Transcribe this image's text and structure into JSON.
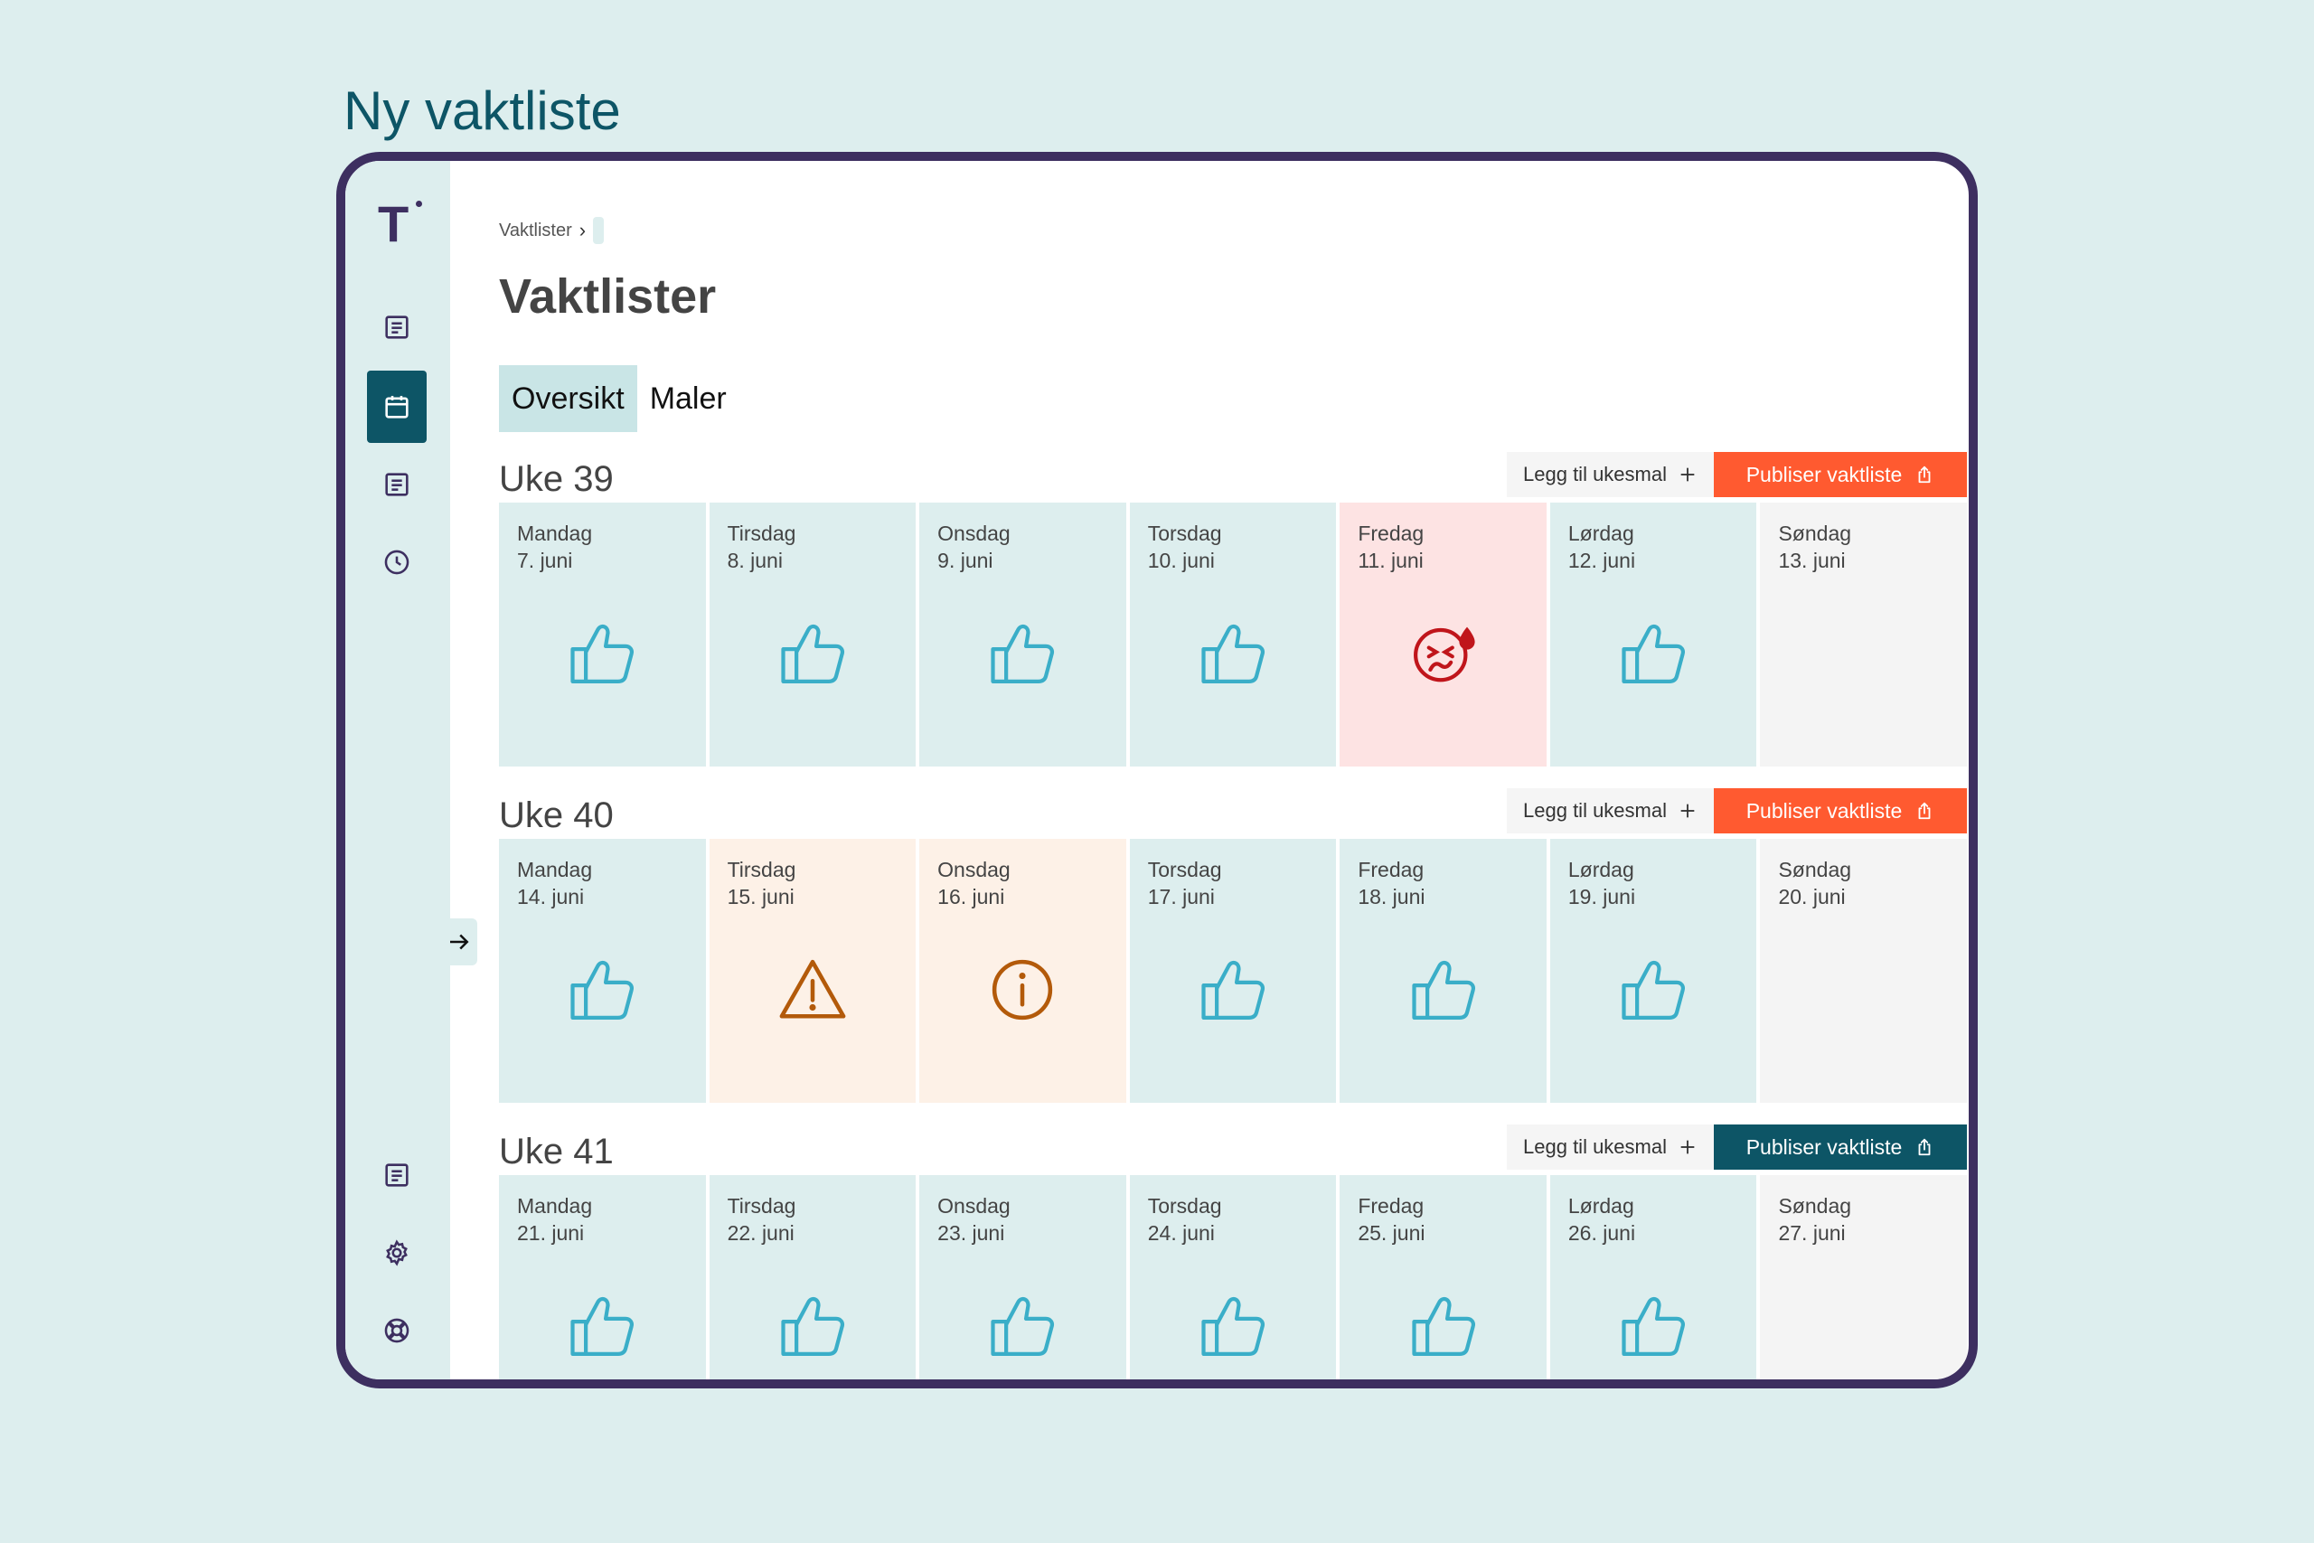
{
  "frame_title": "Ny vaktliste",
  "app": {
    "logo": "T",
    "breadcrumb": "Vaktlister",
    "page_title": "Vaktlister",
    "tabs": [
      {
        "label": "Oversikt",
        "active": true
      },
      {
        "label": "Maler",
        "active": false
      }
    ],
    "sidebar": {
      "items": [
        {
          "icon": "document-icon",
          "active": false
        },
        {
          "icon": "calendar-icon",
          "active": true
        },
        {
          "icon": "document-icon",
          "active": false
        },
        {
          "icon": "clock-icon",
          "active": false
        }
      ],
      "bottom_items": [
        {
          "icon": "document-icon"
        },
        {
          "icon": "gear-icon"
        },
        {
          "icon": "lifebuoy-icon"
        }
      ]
    }
  },
  "colors": {
    "accent_dark": "#0d5566",
    "publish": "#ff5a30",
    "ok_icon": "#3aaec8",
    "alert_icon": "#c0151b",
    "warn_icon": "#b35a0a"
  },
  "weeks": [
    {
      "title": "Uke 39",
      "add_label": "Legg til ukesmal",
      "publish_label": "Publiser vaktliste",
      "publish_variant": "orange",
      "days": [
        {
          "name": "Mandag",
          "date": "7. juni",
          "status": "ok"
        },
        {
          "name": "Tirsdag",
          "date": "8. juni",
          "status": "ok"
        },
        {
          "name": "Onsdag",
          "date": "9. juni",
          "status": "ok"
        },
        {
          "name": "Torsdag",
          "date": "10. juni",
          "status": "ok"
        },
        {
          "name": "Fredag",
          "date": "11. juni",
          "status": "alert"
        },
        {
          "name": "Lørdag",
          "date": "12. juni",
          "status": "ok"
        },
        {
          "name": "Søndag",
          "date": "13. juni",
          "status": "empty"
        }
      ]
    },
    {
      "title": "Uke 40",
      "add_label": "Legg til ukesmal",
      "publish_label": "Publiser vaktliste",
      "publish_variant": "orange",
      "days": [
        {
          "name": "Mandag",
          "date": "14. juni",
          "status": "ok"
        },
        {
          "name": "Tirsdag",
          "date": "15. juni",
          "status": "warning"
        },
        {
          "name": "Onsdag",
          "date": "16. juni",
          "status": "info"
        },
        {
          "name": "Torsdag",
          "date": "17. juni",
          "status": "ok"
        },
        {
          "name": "Fredag",
          "date": "18. juni",
          "status": "ok"
        },
        {
          "name": "Lørdag",
          "date": "19. juni",
          "status": "ok"
        },
        {
          "name": "Søndag",
          "date": "20. juni",
          "status": "empty"
        }
      ]
    },
    {
      "title": "Uke 41",
      "add_label": "Legg til ukesmal",
      "publish_label": "Publiser vaktliste",
      "publish_variant": "dark",
      "days": [
        {
          "name": "Mandag",
          "date": "21. juni",
          "status": "ok"
        },
        {
          "name": "Tirsdag",
          "date": "22. juni",
          "status": "ok"
        },
        {
          "name": "Onsdag",
          "date": "23. juni",
          "status": "ok"
        },
        {
          "name": "Torsdag",
          "date": "24. juni",
          "status": "ok"
        },
        {
          "name": "Fredag",
          "date": "25. juni",
          "status": "ok"
        },
        {
          "name": "Lørdag",
          "date": "26. juni",
          "status": "ok"
        },
        {
          "name": "Søndag",
          "date": "27. juni",
          "status": "empty"
        }
      ]
    }
  ]
}
